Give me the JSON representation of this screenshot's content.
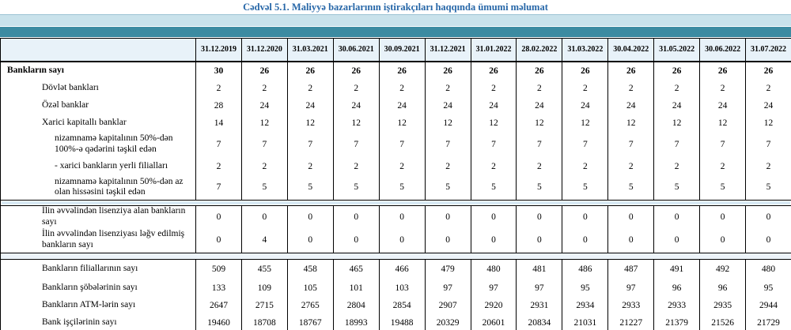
{
  "title": "Cədvəl 5.1. Maliyyə bazarlarının iştirakçıları haqqında ümumi məlumat",
  "colors": {
    "title_text": "#2767a8",
    "band_light": "#c9e2eb",
    "band_dark": "#3c8ba1",
    "header_bg": "#e8f2f9",
    "separator_blue": "#d8e9f4",
    "separator_light": "#edf4fa",
    "border": "#000000"
  },
  "table": {
    "columns": [
      "31.12.2019",
      "31.12.2020",
      "31.03.2021",
      "30.06.2021",
      "30.09.2021",
      "31.12.2021",
      "31.01.2022",
      "28.02.2022",
      "31.03.2022",
      "30.04.2022",
      "31.05.2022",
      "30.06.2022",
      "31.07.2022"
    ],
    "rows": [
      {
        "label": "Bankların sayı",
        "indent": 0,
        "bold": true,
        "values": [
          30,
          26,
          26,
          26,
          26,
          26,
          26,
          26,
          26,
          26,
          26,
          26,
          26
        ]
      },
      {
        "label": "Dövlət bankları",
        "indent": 1,
        "values": [
          2,
          2,
          2,
          2,
          2,
          2,
          2,
          2,
          2,
          2,
          2,
          2,
          2
        ]
      },
      {
        "label": "Özəl banklar",
        "indent": 1,
        "values": [
          28,
          24,
          24,
          24,
          24,
          24,
          24,
          24,
          24,
          24,
          24,
          24,
          24
        ]
      },
      {
        "label": "Xarici kapitallı banklar",
        "indent": 1,
        "values": [
          14,
          12,
          12,
          12,
          12,
          12,
          12,
          12,
          12,
          12,
          12,
          12,
          12
        ]
      },
      {
        "label": "nizamnamə kapitalının 50%-dən 100%-ə qədərini təşkil edən",
        "indent": 2,
        "values": [
          7,
          7,
          7,
          7,
          7,
          7,
          7,
          7,
          7,
          7,
          7,
          7,
          7
        ]
      },
      {
        "label": "-  xarici bankların yerli filialları",
        "indent": 2,
        "values": [
          2,
          2,
          2,
          2,
          2,
          2,
          2,
          2,
          2,
          2,
          2,
          2,
          2
        ]
      },
      {
        "label": "nizamnamə kapitalının 50%-dən az olan hissəsini  təşkil edən",
        "indent": 2,
        "values": [
          7,
          5,
          5,
          5,
          5,
          5,
          5,
          5,
          5,
          5,
          5,
          5,
          5
        ]
      },
      {
        "separator": true,
        "style": "blue"
      },
      {
        "label": "İlin əvvəlindən lisenziya alan bankların sayı",
        "indent": 1,
        "values": [
          0,
          0,
          0,
          0,
          0,
          0,
          0,
          0,
          0,
          0,
          0,
          0,
          0
        ]
      },
      {
        "label": "İlin əvvəlindən lisenziyası ləğv edilmiş bankların sayı",
        "indent": 1,
        "values": [
          0,
          4,
          0,
          0,
          0,
          0,
          0,
          0,
          0,
          0,
          0,
          0,
          0
        ]
      },
      {
        "separator": true,
        "style": "light"
      },
      {
        "label": "Bankların filiallarının sayı",
        "indent": 1,
        "values": [
          509,
          455,
          458,
          465,
          466,
          479,
          480,
          481,
          486,
          487,
          491,
          492,
          480
        ]
      },
      {
        "label": "Bankların şöbələrinin sayı",
        "indent": 1,
        "values": [
          133,
          109,
          105,
          101,
          103,
          97,
          97,
          97,
          95,
          97,
          96,
          96,
          95
        ]
      },
      {
        "label": "Bankların ATM-lərin sayı",
        "indent": 1,
        "values": [
          2647,
          2715,
          2765,
          2804,
          2854,
          2907,
          2920,
          2931,
          2934,
          2933,
          2933,
          2935,
          2944
        ]
      },
      {
        "label": "Bank işçilərinin sayı",
        "indent": 1,
        "values": [
          19460,
          18708,
          18767,
          18993,
          19488,
          20329,
          20601,
          20834,
          21031,
          21227,
          21379,
          21526,
          21729
        ]
      }
    ]
  }
}
